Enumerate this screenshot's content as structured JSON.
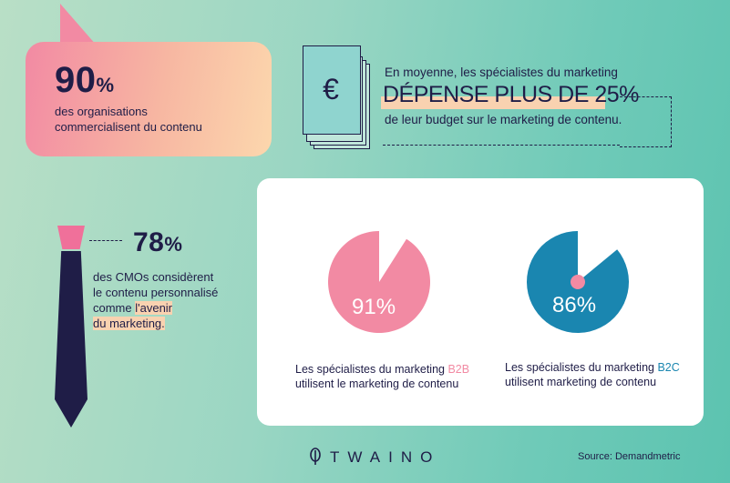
{
  "stat_organisations": {
    "value": "90",
    "unit": "%",
    "text_line1": "des organisations",
    "text_line2": "commercialisent du contenu"
  },
  "stat_budget": {
    "line1": "En moyenne, les spécialistes du marketing",
    "line2": "DÉPENSE PLUS DE 25%",
    "line3": "de leur budget sur le marketing de contenu.",
    "icon": "euro-bills-icon",
    "currency_symbol": "€"
  },
  "stat_cmo": {
    "value": "78",
    "unit": "%",
    "line1": "des CMOs considèrent",
    "line2": "le contenu personnalisé",
    "line3_prefix": "comme ",
    "line3_highlight": "l'avenir",
    "line4": "du marketing.",
    "icon": "necktie-icon"
  },
  "pies": [
    {
      "percent": 91,
      "label": "91%",
      "color": "#f28aa3",
      "caption_prefix": "Les spécialistes du marketing ",
      "caption_segment": "B2B",
      "caption_line2": "utilisent le marketing de contenu"
    },
    {
      "percent": 86,
      "label": "86%",
      "color": "#1a86b0",
      "caption_prefix": "Les spécialistes du marketing ",
      "caption_segment": "B2C",
      "caption_line2": "utilisent marketing de contenu"
    }
  ],
  "footer": {
    "logo": "TWAINO",
    "source": "Source:  Demandmetric"
  },
  "colors": {
    "navy": "#1f1d47",
    "pink": "#f28aa3",
    "teal_blue": "#1a86b0",
    "peach": "#f9d2b0",
    "mint": "#8fd4cf"
  }
}
